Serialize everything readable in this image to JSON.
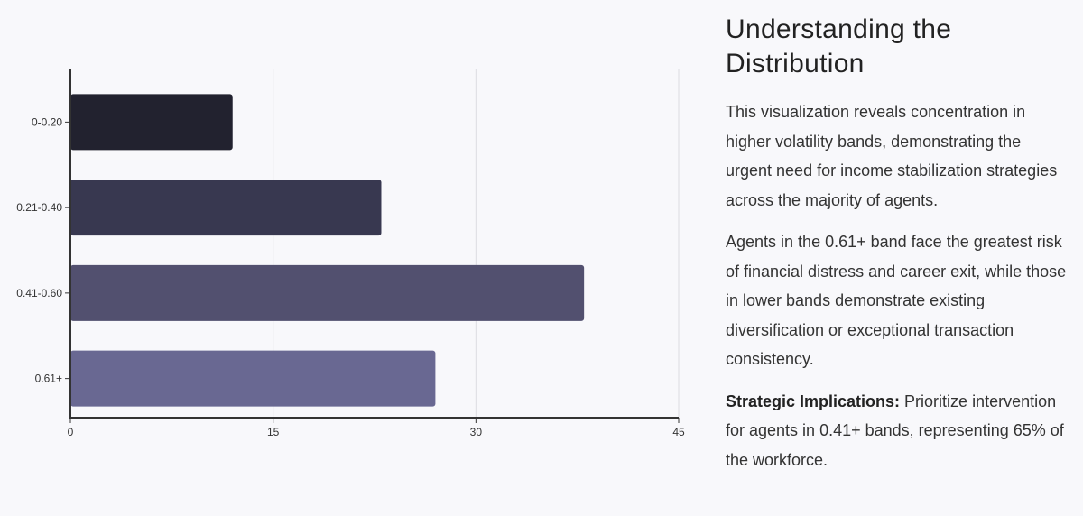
{
  "chart_data": {
    "type": "bar",
    "orientation": "horizontal",
    "categories": [
      "0-0.20",
      "0.21-0.40",
      "0.41-0.60",
      "0.61+"
    ],
    "values": [
      12,
      23,
      38,
      27
    ],
    "colors": [
      "#22222f",
      "#383850",
      "#52506f",
      "#696892"
    ],
    "xlim": [
      0,
      45
    ],
    "xticks": [
      0,
      15,
      30,
      45
    ],
    "grid": true,
    "title": "",
    "xlabel": "",
    "ylabel": ""
  },
  "side": {
    "title": "Understanding the Distribution",
    "p1": "This visualization reveals concentration in higher volatility bands, demonstrating the urgent need for income stabilization strategies across the majority of agents.",
    "p2": "Agents in the 0.61+ band face the greatest risk of financial distress and career exit, while those in lower bands demonstrate existing diversification or exceptional transaction consistency.",
    "p3_bold": "Strategic Implications:",
    "p3": " Prioritize intervention for agents in 0.41+ bands, representing 65% of the workforce."
  }
}
